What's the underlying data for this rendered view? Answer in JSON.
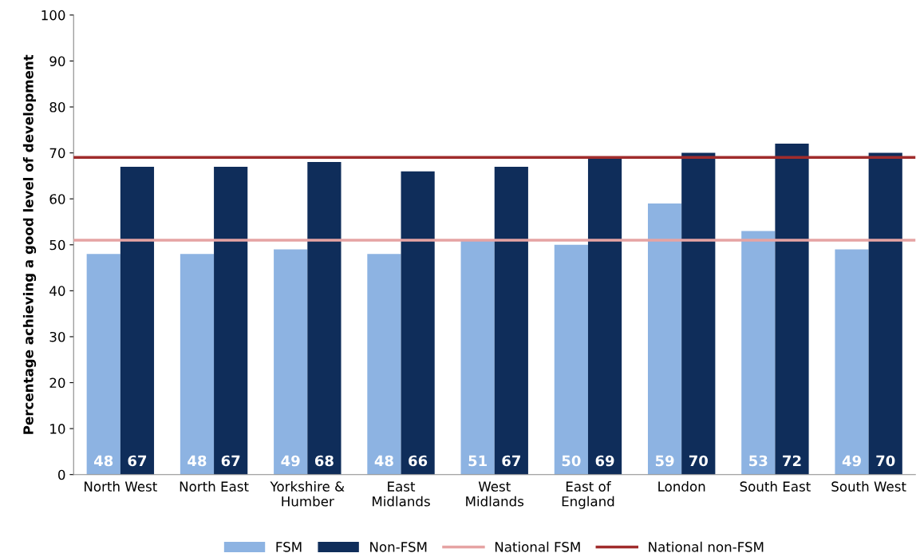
{
  "chart_data": {
    "type": "bar",
    "ylabel": "Percentage achieving a good level of development",
    "categories": [
      "North West",
      "North East",
      "Yorkshire &\nHumber",
      "East\nMidlands",
      "West\nMidlands",
      "East of\nEngland",
      "London",
      "South East",
      "South West"
    ],
    "series": [
      {
        "name": "FSM",
        "color": "#8db3e2",
        "values": [
          48,
          48,
          49,
          48,
          51,
          50,
          59,
          53,
          49
        ]
      },
      {
        "name": "Non-FSM",
        "color": "#0f2d5a",
        "values": [
          67,
          67,
          68,
          66,
          67,
          69,
          70,
          72,
          70
        ]
      }
    ],
    "ref_lines": [
      {
        "axis": "y",
        "value": 51,
        "label": "National FSM",
        "color": "#e6a3a3"
      },
      {
        "axis": "y",
        "value": 69,
        "label": "National non-FSM",
        "color": "#a02c2c"
      }
    ],
    "ylim": [
      0,
      100
    ],
    "yticks": [
      0,
      10,
      20,
      30,
      40,
      50,
      60,
      70,
      80,
      90,
      100
    ],
    "data_labels": true,
    "grid": false,
    "legend": "bottom"
  }
}
